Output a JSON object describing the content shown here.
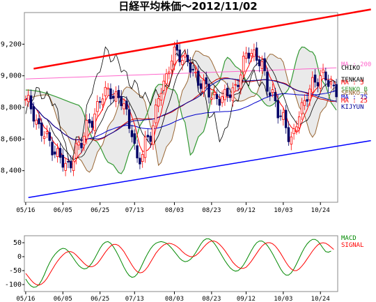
{
  "chart_data": [
    {
      "type": "candlestick",
      "title": "日経平均株価～2012/11/02",
      "ylim": [
        8200,
        9400
      ],
      "yticks": [
        {
          "v": 9200,
          "label": "9,200"
        },
        {
          "v": 9000,
          "label": "9,000"
        },
        {
          "v": 8800,
          "label": "8,800"
        },
        {
          "v": 8600,
          "label": "8,600"
        },
        {
          "v": 8400,
          "label": "8,400"
        }
      ],
      "xticks": [
        {
          "i": 0,
          "label": "05/16"
        },
        {
          "i": 14,
          "label": "06/05"
        },
        {
          "i": 28,
          "label": "06/25"
        },
        {
          "i": 41,
          "label": "07/13"
        },
        {
          "i": 56,
          "label": "08/03"
        },
        {
          "i": 70,
          "label": "08/23"
        },
        {
          "i": 83,
          "label": "09/12"
        },
        {
          "i": 97,
          "label": "10/03"
        },
        {
          "i": 111,
          "label": "10/24"
        }
      ],
      "ohlc": [],
      "overlays_legend": [
        {
          "name": "MA : 200",
          "color": "#ff66cc"
        },
        {
          "name": "CHIKO",
          "color": "#000000"
        },
        {
          "name": "TENKAN",
          "color": "#000000"
        },
        {
          "name": "MA : 5",
          "color": "#ff0000"
        },
        {
          "name": "SENKO_B",
          "color": "#339933"
        },
        {
          "name": "SENKO_A",
          "color": "#996633"
        },
        {
          "name": "MA : 75",
          "color": "#0000cc"
        },
        {
          "name": "MA : 25",
          "color": "#ff0000"
        },
        {
          "name": "KIJYUN",
          "color": "#000099"
        }
      ],
      "trendlines": [
        {
          "color": "#ff0000",
          "from": {
            "i": 3,
            "v": 9045
          },
          "to": {
            "i": 130,
            "v": 9420
          }
        },
        {
          "color": "#0000ff",
          "from": {
            "i": 1,
            "v": 8230
          },
          "to": {
            "i": 130,
            "v": 8590
          }
        }
      ]
    },
    {
      "type": "line",
      "title": "",
      "ylim": [
        -125,
        75
      ],
      "yticks": [
        {
          "v": 50,
          "label": "50"
        },
        {
          "v": 0,
          "label": "0"
        },
        {
          "v": -50,
          "label": "-50"
        },
        {
          "v": -100,
          "label": "-100"
        }
      ],
      "series": [
        {
          "name": "MACD",
          "color": "#008800",
          "values": [
            -80,
            -95,
            -105,
            -110,
            -108,
            -100,
            -85,
            -65,
            -42,
            -22,
            -5,
            8,
            18,
            26,
            30,
            28,
            20,
            8,
            -6,
            -20,
            -32,
            -40,
            -44,
            -42,
            -34,
            -22,
            -6,
            12,
            30,
            44,
            52,
            54,
            48,
            36,
            20,
            2,
            -18,
            -38,
            -55,
            -68,
            -74,
            -72,
            -62,
            -46,
            -26,
            -6,
            12,
            28,
            40,
            48,
            52,
            54,
            52,
            48,
            40,
            30,
            18,
            6,
            -6,
            -14,
            -18,
            -16,
            -10,
            0,
            14,
            30,
            46,
            58,
            64,
            64,
            58,
            48,
            34,
            18,
            2,
            -14,
            -28,
            -40,
            -48,
            -52,
            -50,
            -42,
            -30,
            -14,
            4,
            22,
            38,
            50,
            56,
            56,
            50,
            40,
            26,
            10,
            -8,
            -26,
            -44,
            -58,
            -66,
            -66,
            -58,
            -44,
            -26,
            -6,
            14,
            32,
            46,
            56,
            62,
            62,
            56,
            44,
            30,
            18,
            16,
            20
          ]
        },
        {
          "name": "SIGNAL",
          "color": "#ff0000",
          "values": [
            -60,
            -72,
            -84,
            -94,
            -100,
            -102,
            -98,
            -90,
            -78,
            -62,
            -46,
            -30,
            -16,
            -4,
            6,
            14,
            18,
            18,
            14,
            6,
            -4,
            -14,
            -24,
            -32,
            -36,
            -36,
            -32,
            -24,
            -12,
            2,
            16,
            28,
            38,
            44,
            44,
            40,
            30,
            18,
            2,
            -14,
            -30,
            -44,
            -54,
            -58,
            -56,
            -48,
            -36,
            -20,
            -4,
            12,
            24,
            34,
            42,
            46,
            48,
            46,
            42,
            36,
            28,
            18,
            10,
            4,
            0,
            0,
            4,
            12,
            22,
            34,
            44,
            52,
            56,
            56,
            52,
            44,
            34,
            22,
            8,
            -6,
            -20,
            -30,
            -38,
            -42,
            -42,
            -38,
            -28,
            -16,
            -2,
            12,
            26,
            38,
            46,
            50,
            50,
            46,
            38,
            26,
            12,
            -4,
            -20,
            -34,
            -44,
            -50,
            -50,
            -44,
            -34,
            -22,
            -8,
            6,
            20,
            32,
            42,
            48,
            50,
            48,
            42,
            34,
            26
          ]
        }
      ],
      "xticks": [
        {
          "i": 0,
          "label": "05/16"
        },
        {
          "i": 14,
          "label": "06/05"
        },
        {
          "i": 28,
          "label": "06/25"
        },
        {
          "i": 41,
          "label": "07/13"
        },
        {
          "i": 56,
          "label": "08/03"
        },
        {
          "i": 70,
          "label": "08/23"
        },
        {
          "i": 83,
          "label": "09/12"
        },
        {
          "i": 97,
          "label": "10/03"
        },
        {
          "i": 111,
          "label": "10/24"
        }
      ]
    }
  ]
}
